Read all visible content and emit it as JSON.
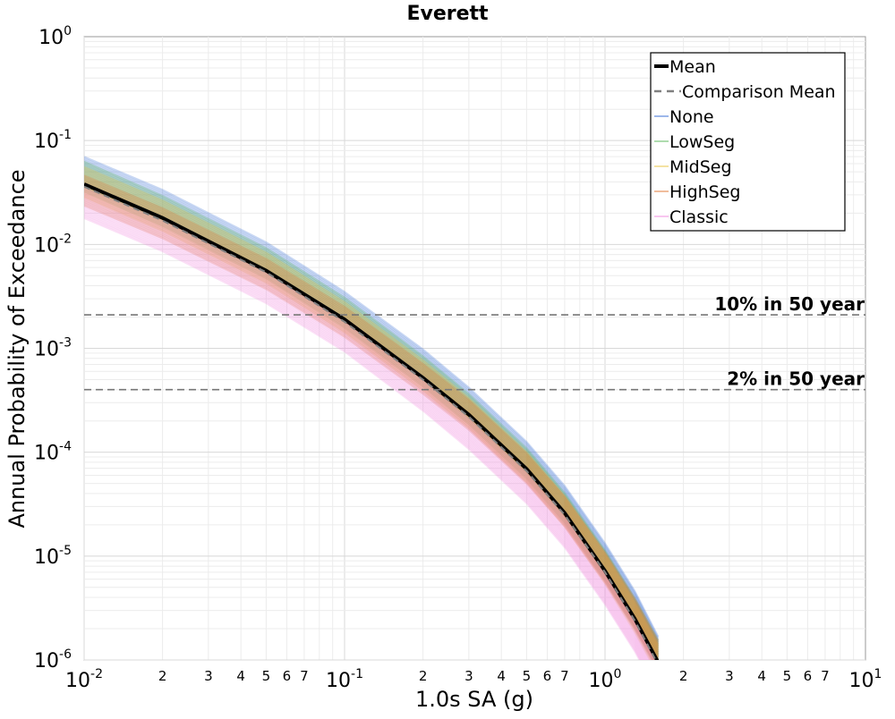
{
  "chart_data": {
    "type": "line",
    "title": "Everett",
    "xlabel": "1.0s SA (g)",
    "ylabel": "Annual Probability of Exceedance",
    "xscale": "log",
    "yscale": "log",
    "xlim": [
      0.01,
      10
    ],
    "ylim": [
      1e-06,
      1
    ],
    "grid": true,
    "legend_position": "top-right",
    "x_major_ticks": [
      {
        "value": 0.01,
        "base": "10",
        "exp": "-2"
      },
      {
        "value": 0.1,
        "base": "10",
        "exp": "-1"
      },
      {
        "value": 1,
        "base": "10",
        "exp": "0"
      },
      {
        "value": 10,
        "base": "10",
        "exp": "1"
      }
    ],
    "x_minor_tick_labels": [
      "2",
      "3",
      "4",
      "5",
      "6",
      "7"
    ],
    "y_major_ticks": [
      {
        "value": 1,
        "base": "10",
        "exp": "0"
      },
      {
        "value": 0.1,
        "base": "10",
        "exp": "-1"
      },
      {
        "value": 0.01,
        "base": "10",
        "exp": "-2"
      },
      {
        "value": 0.001,
        "base": "10",
        "exp": "-3"
      },
      {
        "value": 0.0001,
        "base": "10",
        "exp": "-4"
      },
      {
        "value": 1e-05,
        "base": "10",
        "exp": "-5"
      },
      {
        "value": 1e-06,
        "base": "10",
        "exp": "-6"
      }
    ],
    "reference_lines": [
      {
        "label": "10% in 50 year",
        "y": 0.0021
      },
      {
        "label": "2% in 50 year",
        "y": 0.0004
      }
    ],
    "series": [
      {
        "name": "Mean",
        "color": "#000000",
        "style": "solid-thick",
        "x": [
          0.01,
          0.02,
          0.05,
          0.1,
          0.2,
          0.3,
          0.5,
          0.7,
          1.0,
          1.3,
          1.6
        ],
        "y": [
          0.038,
          0.018,
          0.0056,
          0.0019,
          0.00052,
          0.00023,
          6.9e-05,
          2.6e-05,
          7.2e-06,
          2.5e-06,
          9.5e-07
        ]
      },
      {
        "name": "Comparison Mean",
        "color": "#808080",
        "style": "dashed",
        "x": [
          0.01,
          0.02,
          0.05,
          0.1,
          0.2,
          0.3,
          0.5,
          0.7,
          1.0,
          1.3,
          1.6
        ],
        "y": [
          0.036,
          0.017,
          0.0054,
          0.0018,
          0.0005,
          0.00022,
          6.6e-05,
          2.5e-05,
          7e-06,
          2.4e-06,
          9e-07
        ]
      },
      {
        "name": "None",
        "color": "#3b6fd4",
        "style": "band",
        "x": [
          0.01,
          0.02,
          0.05,
          0.1,
          0.2,
          0.3,
          0.5,
          0.7,
          1.0,
          1.3,
          1.6
        ],
        "y": [
          0.05,
          0.024,
          0.0075,
          0.0025,
          0.0007,
          0.0003,
          9e-05,
          3.4e-05,
          9.5e-06,
          3.3e-06,
          1.2e-06
        ]
      },
      {
        "name": "LowSeg",
        "color": "#5cb85c",
        "style": "band",
        "x": [
          0.01,
          0.02,
          0.05,
          0.1,
          0.2,
          0.3,
          0.5,
          0.7,
          1.0,
          1.3,
          1.6
        ],
        "y": [
          0.045,
          0.021,
          0.0066,
          0.0022,
          0.0006,
          0.00026,
          7.8e-05,
          2.9e-05,
          8.1e-06,
          2.8e-06,
          1.1e-06
        ]
      },
      {
        "name": "MidSeg",
        "color": "#e8c547",
        "style": "band",
        "x": [
          0.01,
          0.02,
          0.05,
          0.1,
          0.2,
          0.3,
          0.5,
          0.7,
          1.0,
          1.3,
          1.6
        ],
        "y": [
          0.04,
          0.019,
          0.006,
          0.002,
          0.00055,
          0.00024,
          7.2e-05,
          2.7e-05,
          7.6e-06,
          2.6e-06,
          1e-06
        ]
      },
      {
        "name": "HighSeg",
        "color": "#e07b39",
        "style": "band",
        "x": [
          0.01,
          0.02,
          0.05,
          0.1,
          0.2,
          0.3,
          0.5,
          0.7,
          1.0,
          1.3,
          1.6
        ],
        "y": [
          0.033,
          0.016,
          0.0052,
          0.0018,
          0.00051,
          0.00023,
          7e-05,
          2.7e-05,
          7.8e-06,
          2.8e-06,
          1.1e-06
        ]
      },
      {
        "name": "Classic",
        "color": "#f08ce0",
        "style": "band",
        "x": [
          0.01,
          0.02,
          0.05,
          0.1,
          0.2,
          0.3,
          0.5,
          0.7,
          1.0,
          1.3,
          1.6
        ],
        "y": [
          0.025,
          0.012,
          0.0038,
          0.0013,
          0.00035,
          0.00015,
          4.5e-05,
          1.7e-05,
          4.8e-06,
          1.7e-06,
          6.5e-07
        ]
      }
    ]
  }
}
